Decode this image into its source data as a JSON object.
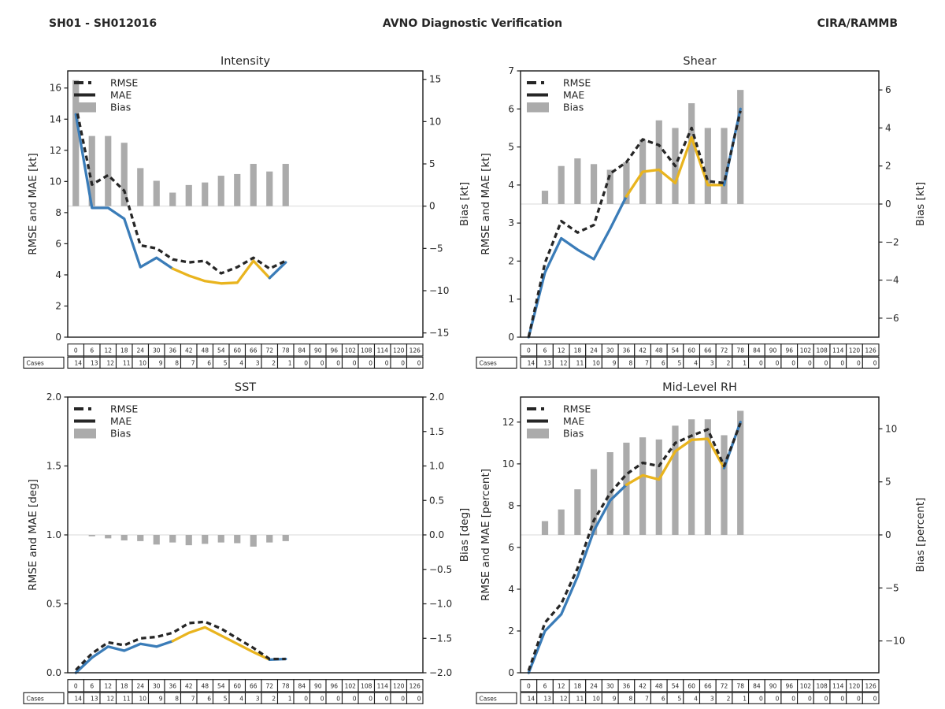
{
  "header": {
    "left": "SH01 - SH012016",
    "center": "AVNO Diagnostic Verification",
    "right": "CIRA/RAMMB"
  },
  "colors": {
    "rmse_line": "#262626",
    "mae_recent": "#3a7cb8",
    "mae_older": "#e9b41e",
    "bias_bar": "#ababab",
    "zero_line": "#d9d9d9",
    "axis": "#1a1a1a",
    "text": "#262626",
    "table_border": "#1a1a1a"
  },
  "legend_labels": [
    "RMSE",
    "MAE",
    "Bias"
  ],
  "cases_label": "Cases",
  "hours": [
    0,
    6,
    12,
    18,
    24,
    30,
    36,
    42,
    48,
    54,
    60,
    66,
    72,
    78,
    84,
    90,
    96,
    102,
    108,
    114,
    120,
    126
  ],
  "cases": [
    14,
    13,
    12,
    11,
    10,
    9,
    8,
    7,
    6,
    5,
    4,
    3,
    2,
    1,
    0,
    0,
    0,
    0,
    0,
    0,
    0,
    0
  ],
  "chart_data": [
    {
      "type": "line+bar",
      "title": "Intensity",
      "left_axis_label": "RMSE and MAE [kt]",
      "right_axis_label": "Bias [kt]",
      "left_ylim": [
        0,
        17.1
      ],
      "right_ylim": [
        -15.5,
        16.0
      ],
      "left_ticks": [
        0,
        2,
        4,
        6,
        8,
        10,
        12,
        14,
        16
      ],
      "right_ticks": [
        -15,
        -10,
        -5,
        0,
        5,
        10,
        15
      ],
      "tick_decimals_left": 0,
      "tick_decimals_right": 0,
      "x": [
        0,
        6,
        12,
        18,
        24,
        30,
        36,
        42,
        48,
        54,
        60,
        66,
        72,
        78
      ],
      "series": {
        "rmse": [
          14.9,
          9.8,
          10.4,
          9.4,
          5.9,
          5.7,
          5.0,
          4.8,
          4.9,
          4.1,
          4.5,
          5.1,
          4.4,
          4.9
        ],
        "mae": [
          14.3,
          8.3,
          8.3,
          7.6,
          4.5,
          5.1,
          4.4,
          3.95,
          3.6,
          3.45,
          3.5,
          4.9,
          3.8,
          4.8
        ],
        "bias": [
          14.9,
          8.3,
          8.3,
          7.5,
          4.5,
          3.0,
          1.6,
          2.5,
          2.8,
          3.6,
          3.8,
          5.0,
          4.1,
          5.0
        ]
      },
      "mae_color_segments": [
        {
          "start_hour": 0,
          "end_hour": 36,
          "color_key": "mae_recent"
        },
        {
          "start_hour": 36,
          "end_hour": 72,
          "color_key": "mae_older"
        },
        {
          "start_hour": 72,
          "end_hour": 78,
          "color_key": "mae_recent"
        }
      ],
      "legend_position": "upper-left",
      "grid": false
    },
    {
      "type": "line+bar",
      "title": "Shear",
      "left_axis_label": "RMSE and MAE [kt]",
      "right_axis_label": "Bias [kt]",
      "left_ylim": [
        0,
        7
      ],
      "right_ylim": [
        -7,
        7
      ],
      "left_ticks": [
        0,
        1,
        2,
        3,
        4,
        5,
        6,
        7
      ],
      "right_ticks": [
        -6,
        -4,
        -2,
        0,
        2,
        4,
        6
      ],
      "tick_decimals_left": 0,
      "tick_decimals_right": 0,
      "x": [
        0,
        6,
        12,
        18,
        24,
        30,
        36,
        42,
        48,
        54,
        60,
        66,
        72,
        78
      ],
      "series": {
        "rmse": [
          0,
          1.95,
          3.05,
          2.75,
          2.95,
          4.3,
          4.6,
          5.2,
          5.05,
          4.5,
          5.5,
          4.1,
          4.05,
          5.95
        ],
        "mae": [
          0,
          1.7,
          2.6,
          2.3,
          2.05,
          2.85,
          3.7,
          4.35,
          4.4,
          4.05,
          5.25,
          4.0,
          4.0,
          6.0
        ],
        "bias": [
          0,
          0.7,
          2.0,
          2.4,
          2.1,
          1.8,
          2.2,
          3.4,
          4.4,
          4.0,
          5.3,
          4.0,
          4.0,
          6.0
        ]
      },
      "mae_color_segments": [
        {
          "start_hour": 0,
          "end_hour": 36,
          "color_key": "mae_recent"
        },
        {
          "start_hour": 36,
          "end_hour": 72,
          "color_key": "mae_older"
        },
        {
          "start_hour": 72,
          "end_hour": 78,
          "color_key": "mae_recent"
        }
      ],
      "legend_position": "upper-left",
      "grid": false
    },
    {
      "type": "line+bar",
      "title": "SST",
      "left_axis_label": "RMSE and MAE [deg]",
      "right_axis_label": "Bias [deg]",
      "left_ylim": [
        0,
        2
      ],
      "right_ylim": [
        -2,
        2
      ],
      "left_ticks": [
        0,
        0.5,
        1,
        1.5,
        2
      ],
      "right_ticks": [
        -2,
        -1.5,
        -1,
        -0.5,
        0,
        0.5,
        1,
        1.5,
        2
      ],
      "tick_decimals_left": 1,
      "tick_decimals_right": 1,
      "x": [
        0,
        6,
        12,
        18,
        24,
        30,
        36,
        42,
        48,
        54,
        60,
        66,
        72,
        78
      ],
      "series": {
        "rmse": [
          0.02,
          0.14,
          0.22,
          0.2,
          0.25,
          0.26,
          0.29,
          0.36,
          0.37,
          0.32,
          0.25,
          0.18,
          0.1,
          0.1
        ],
        "mae": [
          0,
          0.11,
          0.19,
          0.16,
          0.21,
          0.19,
          0.23,
          0.29,
          0.33,
          0.27,
          0.21,
          0.15,
          0.095,
          0.1
        ],
        "bias": [
          0,
          -0.02,
          -0.05,
          -0.08,
          -0.09,
          -0.14,
          -0.11,
          -0.15,
          -0.13,
          -0.11,
          -0.12,
          -0.17,
          -0.11,
          -0.09
        ]
      },
      "mae_color_segments": [
        {
          "start_hour": 0,
          "end_hour": 36,
          "color_key": "mae_recent"
        },
        {
          "start_hour": 36,
          "end_hour": 72,
          "color_key": "mae_older"
        },
        {
          "start_hour": 72,
          "end_hour": 78,
          "color_key": "mae_recent"
        }
      ],
      "legend_position": "upper-left",
      "grid": false
    },
    {
      "type": "line+bar",
      "title": "Mid-Level RH",
      "left_axis_label": "RMSE and MAE [percent]",
      "right_axis_label": "Bias [percent]",
      "left_ylim": [
        0,
        13.2
      ],
      "right_ylim": [
        -13,
        13
      ],
      "left_ticks": [
        0,
        2,
        4,
        6,
        8,
        10,
        12
      ],
      "right_ticks": [
        -10,
        -5,
        0,
        5,
        10
      ],
      "tick_decimals_left": 0,
      "tick_decimals_right": 0,
      "x": [
        0,
        6,
        12,
        18,
        24,
        30,
        36,
        42,
        48,
        54,
        60,
        66,
        72,
        78
      ],
      "series": {
        "rmse": [
          0.1,
          2.4,
          3.3,
          5.0,
          7.3,
          8.6,
          9.5,
          10.05,
          9.9,
          11.0,
          11.35,
          11.65,
          9.9,
          11.95
        ],
        "mae": [
          0,
          2.0,
          2.8,
          4.6,
          6.8,
          8.25,
          9.0,
          9.45,
          9.25,
          10.6,
          11.15,
          11.2,
          9.8,
          12.0
        ],
        "bias": [
          0,
          1.3,
          2.4,
          4.3,
          6.2,
          7.8,
          8.7,
          9.2,
          9.0,
          10.3,
          10.9,
          10.9,
          9.4,
          11.7
        ]
      },
      "mae_color_segments": [
        {
          "start_hour": 0,
          "end_hour": 36,
          "color_key": "mae_recent"
        },
        {
          "start_hour": 36,
          "end_hour": 72,
          "color_key": "mae_older"
        },
        {
          "start_hour": 72,
          "end_hour": 78,
          "color_key": "mae_recent"
        }
      ],
      "legend_position": "upper-left",
      "grid": false
    }
  ]
}
